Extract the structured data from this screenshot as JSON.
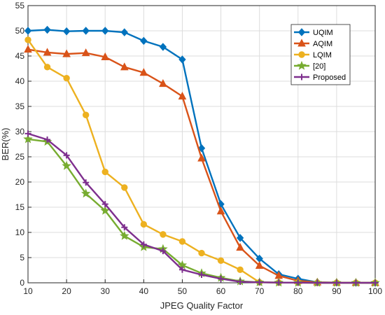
{
  "chart_data": {
    "type": "line",
    "xlabel": "JPEG Quality Factor",
    "ylabel": "BER(%)",
    "xlim": [
      10,
      100
    ],
    "ylim": [
      0,
      55
    ],
    "xticks": [
      10,
      20,
      30,
      40,
      50,
      60,
      70,
      80,
      90,
      100
    ],
    "yticks": [
      0,
      5,
      10,
      15,
      20,
      25,
      30,
      35,
      40,
      45,
      50,
      55
    ],
    "grid": true,
    "legend_position": "top-right",
    "x": [
      10,
      15,
      20,
      25,
      30,
      35,
      40,
      45,
      50,
      55,
      60,
      65,
      70,
      75,
      80,
      85,
      90,
      95,
      100
    ],
    "series": [
      {
        "name": "UQIM",
        "color": "#0072BD",
        "marker": "diamond",
        "values": [
          50.0,
          50.2,
          49.9,
          50.0,
          50.0,
          49.7,
          48.0,
          46.8,
          44.3,
          26.7,
          15.6,
          8.9,
          4.8,
          1.7,
          0.8,
          0.1,
          0.05,
          0.02,
          0.0
        ]
      },
      {
        "name": "AQIM",
        "color": "#D95319",
        "marker": "triangle",
        "values": [
          46.3,
          45.7,
          45.4,
          45.6,
          44.8,
          42.8,
          41.7,
          39.5,
          37.0,
          24.7,
          14.2,
          7.0,
          3.4,
          1.4,
          0.4,
          0.1,
          0.05,
          0.02,
          0.0
        ]
      },
      {
        "name": "LQIM",
        "color": "#EDB120",
        "marker": "circle",
        "values": [
          48.2,
          42.8,
          40.6,
          33.3,
          22.0,
          18.9,
          11.6,
          9.6,
          8.2,
          5.9,
          4.4,
          2.6,
          0.1,
          0.05,
          0.02,
          0.0,
          0.0,
          0.0,
          0.0
        ]
      },
      {
        "name": "[20]",
        "color": "#77AC30",
        "marker": "star",
        "values": [
          28.5,
          28.0,
          23.2,
          17.7,
          14.3,
          9.3,
          7.1,
          6.7,
          3.5,
          1.9,
          1.0,
          0.3,
          0.1,
          0.05,
          0.02,
          0.0,
          0.0,
          0.0,
          0.0
        ]
      },
      {
        "name": "Proposed",
        "color": "#7E2F8E",
        "marker": "plus",
        "values": [
          29.6,
          28.4,
          25.3,
          19.9,
          15.6,
          11.0,
          7.6,
          6.3,
          2.6,
          1.6,
          0.8,
          0.2,
          0.1,
          0.05,
          0.02,
          0.0,
          0.0,
          0.0,
          0.0
        ]
      }
    ]
  }
}
